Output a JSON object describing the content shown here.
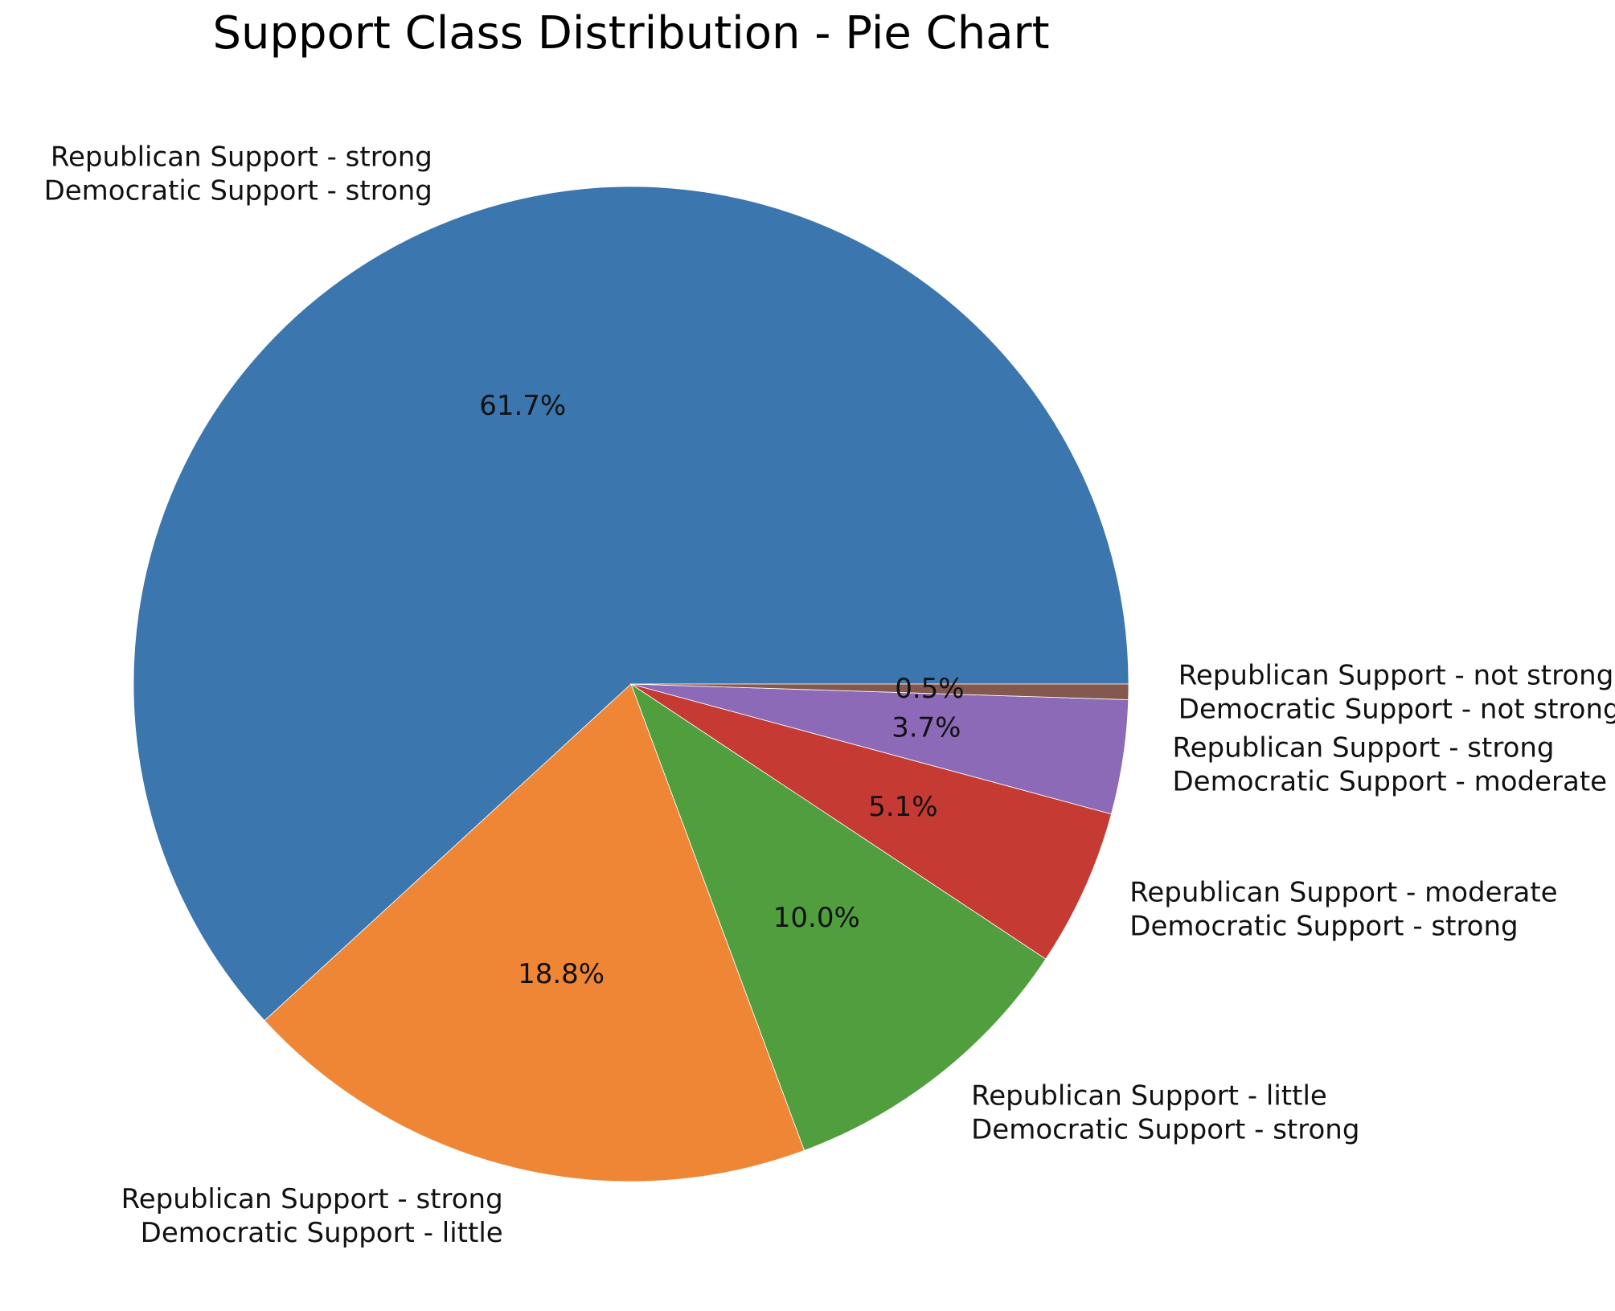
{
  "chart_data": {
    "type": "pie",
    "title": "Support Class Distribution - Pie Chart",
    "start_angle_deg": 0,
    "direction": "counterclockwise",
    "slices": [
      {
        "label_lines": [
          "Republican Support - strong",
          "Democratic Support - strong"
        ],
        "value": 61.7,
        "pct_label": "61.7%",
        "color": "#3c76af"
      },
      {
        "label_lines": [
          "Republican Support - strong",
          "Democratic Support - little"
        ],
        "value": 18.8,
        "pct_label": "18.8%",
        "color": "#ef8636"
      },
      {
        "label_lines": [
          "Republican Support - little",
          "Democratic Support - strong"
        ],
        "value": 10.0,
        "pct_label": "10.0%",
        "color": "#519e3e"
      },
      {
        "label_lines": [
          "Republican Support - moderate",
          "Democratic Support - strong"
        ],
        "value": 5.1,
        "pct_label": "5.1%",
        "color": "#c53a32"
      },
      {
        "label_lines": [
          "Republican Support - strong",
          "Democratic Support - moderate"
        ],
        "value": 3.7,
        "pct_label": "3.7%",
        "color": "#8d6ab8"
      },
      {
        "label_lines": [
          "Republican Support - not strong",
          "Democratic Support - not strong"
        ],
        "value": 0.5,
        "pct_label": "0.5%",
        "color": "#84584e"
      }
    ]
  }
}
